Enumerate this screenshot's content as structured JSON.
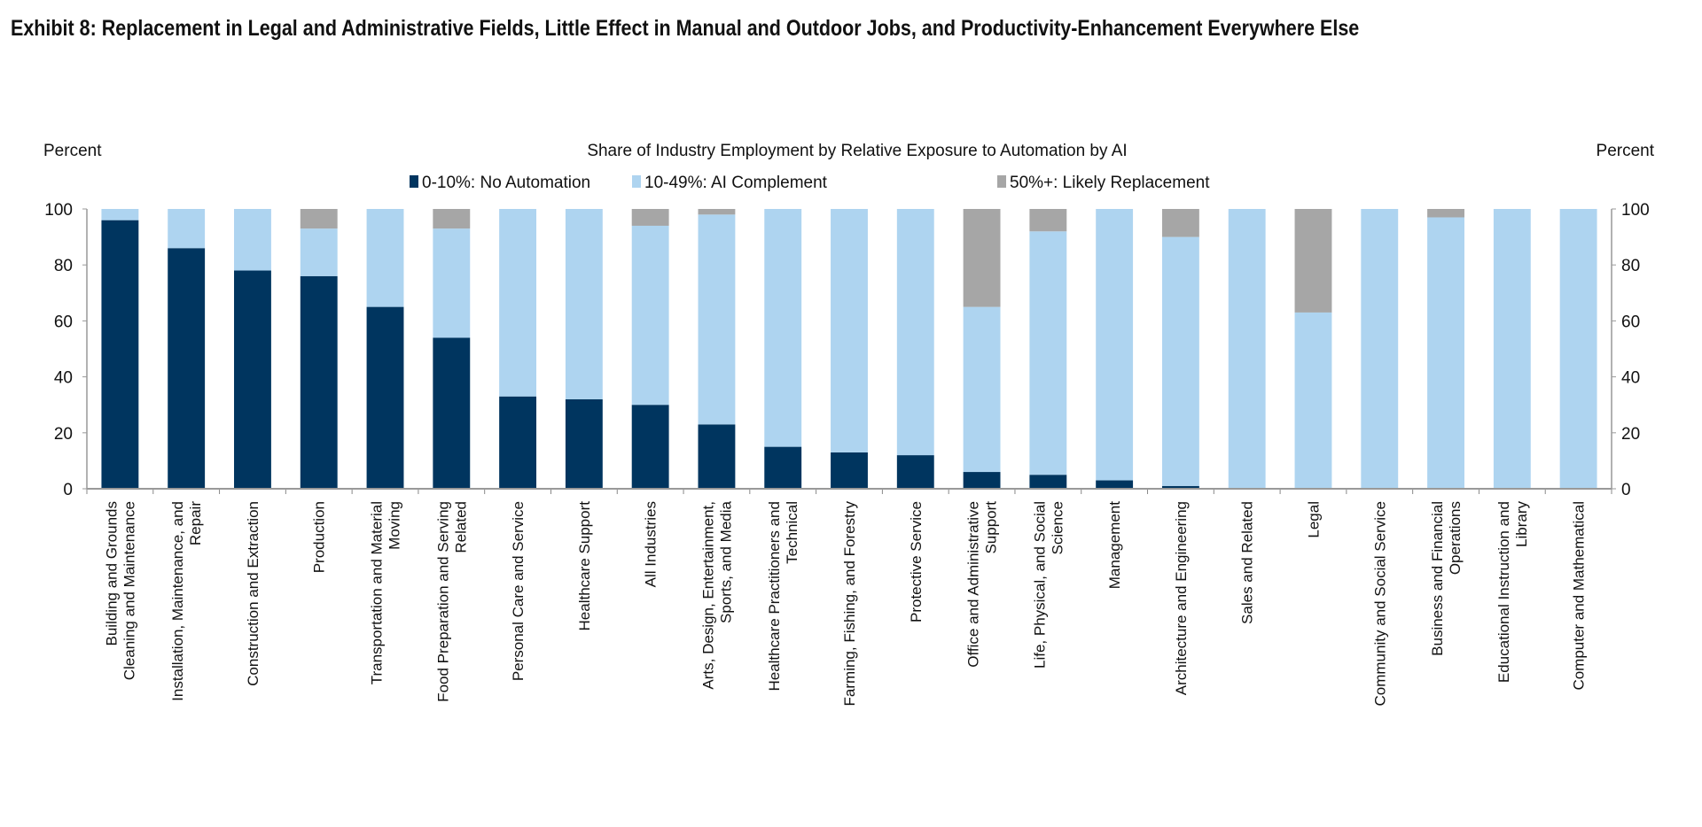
{
  "chart_data": {
    "type": "bar",
    "stacked": true,
    "title": "Exhibit 8: Replacement in Legal and Administrative Fields, Little Effect in Manual and Outdoor Jobs, and Productivity-Enhancement Everywhere Else",
    "subtitle": "Share of Industry Employment by Relative Exposure to Automation by AI",
    "ylabel_left": "Percent",
    "ylabel_right": "Percent",
    "ylim": [
      0,
      100
    ],
    "yticks": [
      0,
      20,
      40,
      60,
      80,
      100
    ],
    "grid": false,
    "legend_position": "top-center",
    "categories": [
      [
        "Building and Grounds",
        "Cleaning and Maintenance"
      ],
      [
        "Installation, Maintenance, and",
        "Repair"
      ],
      [
        "Construction and Extraction"
      ],
      [
        "Production"
      ],
      [
        "Transportation and Material",
        "Moving"
      ],
      [
        "Food Preparation and Serving",
        "Related"
      ],
      [
        "Personal Care and Service"
      ],
      [
        "Healthcare Support"
      ],
      [
        "All Industries"
      ],
      [
        "Arts, Design, Entertainment,",
        "Sports, and Media"
      ],
      [
        "Healthcare Practitioners and",
        "Technical"
      ],
      [
        "Farming, Fishing, and Forestry"
      ],
      [
        "Protective Service"
      ],
      [
        "Office and Administrative",
        "Support"
      ],
      [
        "Life, Physical, and Social",
        "Science"
      ],
      [
        "Management"
      ],
      [
        "Architecture and Engineering"
      ],
      [
        "Sales and Related"
      ],
      [
        "Legal"
      ],
      [
        "Community and Social Service"
      ],
      [
        "Business and Financial",
        "Operations"
      ],
      [
        "Educational Instruction and",
        "Library"
      ],
      [
        "Computer and Mathematical"
      ]
    ],
    "series": [
      {
        "name": "0-10%: No Automation",
        "color": "#00355f",
        "values": [
          96,
          86,
          78,
          76,
          65,
          54,
          33,
          32,
          30,
          23,
          15,
          13,
          12,
          6,
          5,
          3,
          1,
          0,
          0,
          0,
          0,
          0,
          0
        ]
      },
      {
        "name": "10-49%: AI Complement",
        "color": "#aed4f0",
        "values": [
          4,
          14,
          22,
          17,
          35,
          39,
          67,
          68,
          64,
          75,
          85,
          87,
          88,
          59,
          87,
          97,
          89,
          100,
          63,
          100,
          97,
          100,
          100
        ]
      },
      {
        "name": "50%+: Likely Replacement",
        "color": "#a6a6a6",
        "values": [
          0,
          0,
          0,
          7,
          0,
          7,
          0,
          0,
          6,
          2,
          0,
          0,
          0,
          35,
          8,
          0,
          10,
          0,
          37,
          0,
          3,
          0,
          0
        ]
      }
    ]
  }
}
